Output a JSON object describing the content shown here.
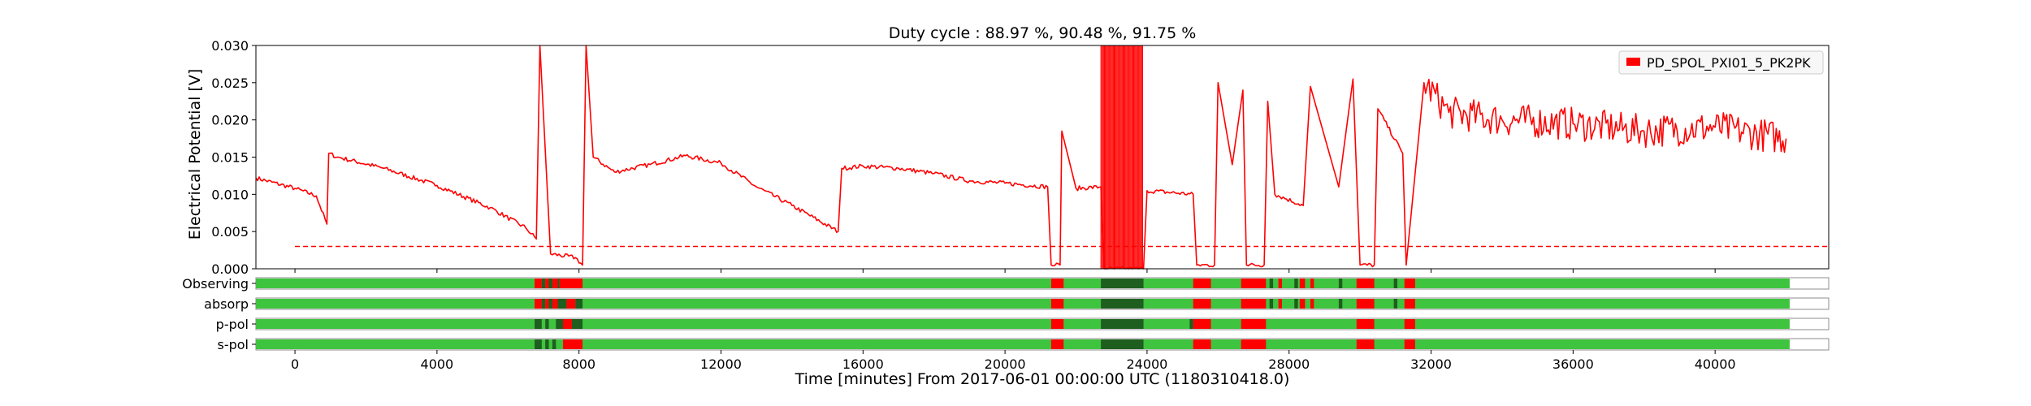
{
  "chart_data": {
    "type": "line",
    "title": "Duty cycle : 88.97 %, 90.48 %, 91.75 %",
    "xlabel": "Time [minutes] From 2017-06-01 00:00:00 UTC (1180310418.0)",
    "ylabel": "Electrical Potential [V]",
    "xlim": [
      -1100,
      43200
    ],
    "ylim": [
      0,
      0.03
    ],
    "grid": true,
    "legend_placement": "top-right",
    "x_ticks": [
      0,
      4000,
      8000,
      12000,
      16000,
      20000,
      24000,
      28000,
      32000,
      36000,
      40000
    ],
    "y_ticks": [
      "0.000",
      "0.005",
      "0.010",
      "0.015",
      "0.020",
      "0.025",
      "0.030"
    ],
    "series": [
      {
        "name": "PD_SPOL_PXI01_5_PK2PK",
        "color": "#ff0000",
        "x": [
          -1100,
          0,
          600,
          900,
          950,
          1200,
          2500,
          4000,
          5500,
          6500,
          6800,
          6900,
          7200,
          7900,
          8100,
          8200,
          8400,
          9000,
          10000,
          11000,
          12000,
          13000,
          14000,
          15300,
          15400,
          16000,
          17000,
          18000,
          19000,
          20000,
          21200,
          21300,
          21550,
          21600,
          22000,
          22700,
          22800,
          23900,
          24000,
          25300,
          25400,
          25900,
          26000,
          26400,
          26700,
          26800,
          27300,
          27400,
          27600,
          28400,
          28600,
          29400,
          29800,
          30000,
          30400,
          30500,
          31200,
          31300,
          31800,
          32500,
          34000,
          36000,
          38000,
          40000,
          42000
        ],
        "values": [
          0.0122,
          0.0108,
          0.0098,
          0.006,
          0.0155,
          0.015,
          0.0135,
          0.0112,
          0.0082,
          0.0055,
          0.004,
          0.03,
          0.002,
          0.0015,
          0.0005,
          0.03,
          0.015,
          0.013,
          0.014,
          0.0152,
          0.0142,
          0.011,
          0.0085,
          0.005,
          0.0135,
          0.0138,
          0.0135,
          0.0128,
          0.0118,
          0.0115,
          0.011,
          0.0005,
          0.0005,
          0.0185,
          0.0108,
          0.011,
          0.0,
          0.0,
          0.0105,
          0.01,
          0.0005,
          0.0005,
          0.025,
          0.014,
          0.024,
          0.0005,
          0.0005,
          0.0225,
          0.01,
          0.0085,
          0.0245,
          0.011,
          0.0255,
          0.0005,
          0.0005,
          0.0215,
          0.0155,
          0.0005,
          0.025,
          0.021,
          0.02,
          0.0195,
          0.0185,
          0.019,
          0.0175
        ]
      }
    ],
    "threshold": {
      "value": 0.003,
      "x_start": 0,
      "x_end": 43200,
      "style": "dashed",
      "color": "#ff0000"
    },
    "state_rows": [
      {
        "label": "Observing",
        "active_end": 42100,
        "off": [
          [
            6750,
            6950
          ],
          [
            7050,
            7150
          ],
          [
            7250,
            7400
          ],
          [
            7450,
            8100
          ],
          [
            21300,
            21650
          ],
          [
            25300,
            25800
          ],
          [
            26650,
            27350
          ],
          [
            27700,
            27800
          ],
          [
            28300,
            28450
          ],
          [
            28600,
            28700
          ],
          [
            29900,
            30400
          ],
          [
            31250,
            31550
          ]
        ],
        "flag": [
          [
            6950,
            7050
          ],
          [
            7150,
            7250
          ],
          [
            7400,
            7450
          ],
          [
            22700,
            23900
          ],
          [
            27450,
            27550
          ],
          [
            28150,
            28250
          ],
          [
            29400,
            29500
          ],
          [
            30950,
            31050
          ]
        ]
      },
      {
        "label": "absorp",
        "active_end": 42100,
        "off": [
          [
            6750,
            6950
          ],
          [
            7050,
            7150
          ],
          [
            7250,
            7400
          ],
          [
            7650,
            7900
          ],
          [
            21300,
            21650
          ],
          [
            25300,
            25800
          ],
          [
            26650,
            27350
          ],
          [
            27700,
            27800
          ],
          [
            28300,
            28450
          ],
          [
            28600,
            28700
          ],
          [
            29900,
            30400
          ],
          [
            31250,
            31550
          ]
        ],
        "flag": [
          [
            6950,
            7050
          ],
          [
            7150,
            7250
          ],
          [
            7400,
            7650
          ],
          [
            7900,
            8100
          ],
          [
            22700,
            23900
          ],
          [
            27450,
            27550
          ],
          [
            28150,
            28250
          ],
          [
            29400,
            29500
          ],
          [
            30950,
            31050
          ]
        ]
      },
      {
        "label": "p-pol",
        "active_end": 42100,
        "off": [
          [
            7550,
            7800
          ],
          [
            21300,
            21650
          ],
          [
            25300,
            25800
          ],
          [
            26650,
            27350
          ],
          [
            29900,
            30400
          ],
          [
            31250,
            31550
          ]
        ],
        "flag": [
          [
            6750,
            6950
          ],
          [
            7050,
            7150
          ],
          [
            7350,
            7550
          ],
          [
            7800,
            8100
          ],
          [
            22700,
            23900
          ],
          [
            25200,
            25300
          ]
        ]
      },
      {
        "label": "s-pol",
        "active_end": 42100,
        "off": [
          [
            7550,
            8100
          ],
          [
            21300,
            21650
          ],
          [
            25300,
            25800
          ],
          [
            26650,
            27350
          ],
          [
            29900,
            30400
          ],
          [
            31250,
            31550
          ]
        ],
        "flag": [
          [
            6750,
            6950
          ],
          [
            7050,
            7150
          ],
          [
            7250,
            7350
          ],
          [
            22700,
            23900
          ]
        ]
      }
    ],
    "colors": {
      "active": "#3ec43e",
      "flag": "#1e5e1e",
      "off": "#ff0000",
      "grid": "#d9d9d9",
      "legend_bg": "#f7f7f7"
    }
  }
}
